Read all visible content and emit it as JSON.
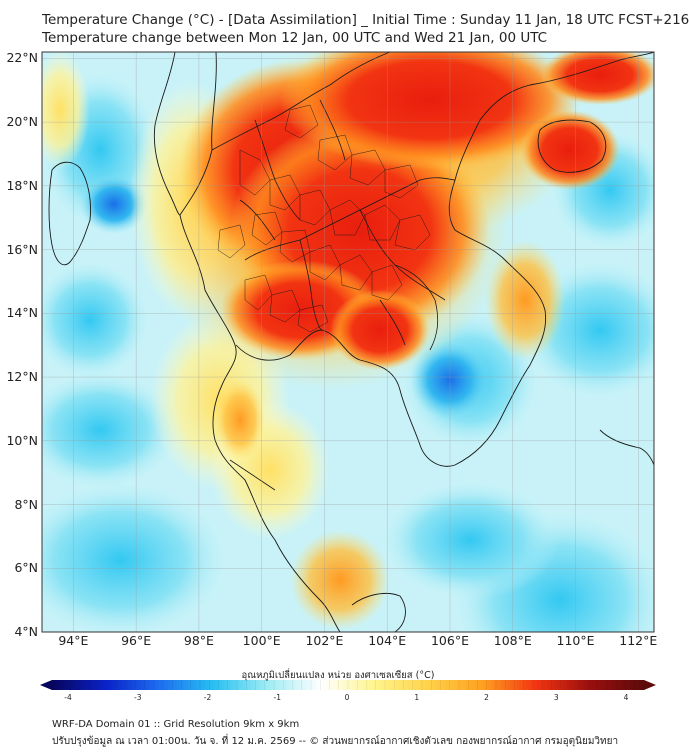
{
  "title": {
    "line1": "Temperature Change (°C) - [Data Assimilation] _ Initial Time : Sunday 11 Jan, 18 UTC FCST+216",
    "line2": "Temperature change between Mon 12 Jan, 00 UTC and Wed 21 Jan, 00 UTC"
  },
  "map": {
    "lat_ticks": [
      "22°N",
      "20°N",
      "18°N",
      "16°N",
      "14°N",
      "12°N",
      "10°N",
      "8°N",
      "6°N",
      "4°N"
    ],
    "lon_ticks": [
      "94°E",
      "96°E",
      "98°E",
      "100°E",
      "102°E",
      "104°E",
      "106°E",
      "108°E",
      "110°E",
      "112°E"
    ],
    "lat_range": [
      4,
      22.2
    ],
    "lon_range": [
      93,
      112.5
    ],
    "gridlines": true
  },
  "colorbar": {
    "label": "อุณหภูมิเปลี่ยนแปลง หน่วย องศาเซลเซียส (°C)",
    "ticks": [
      "-4",
      "-3",
      "-2",
      "-1",
      "0",
      "1",
      "2",
      "3",
      "4"
    ],
    "min": -4,
    "max": 4,
    "colors": [
      "#08055e",
      "#0a22c8",
      "#1e6ef0",
      "#28c0f2",
      "#9eecf4",
      "#ffffff",
      "#fff58c",
      "#ffd24a",
      "#ffa020",
      "#f23412",
      "#990f0f",
      "#5e0a0a"
    ]
  },
  "footer": {
    "line1": "WRF-DA Domain 01 :: Grid Resolution 9km x 9km",
    "line2": "ปรับปรุงข้อมูล ณ เวลา 01:00น. วัน จ. ที่ 12 ม.ค. 2569 -- © ส่วนพยากรณ์อากาศเชิงตัวเลข กองพยากรณ์อากาศ กรมอุตุนิยมวิทยา"
  }
}
